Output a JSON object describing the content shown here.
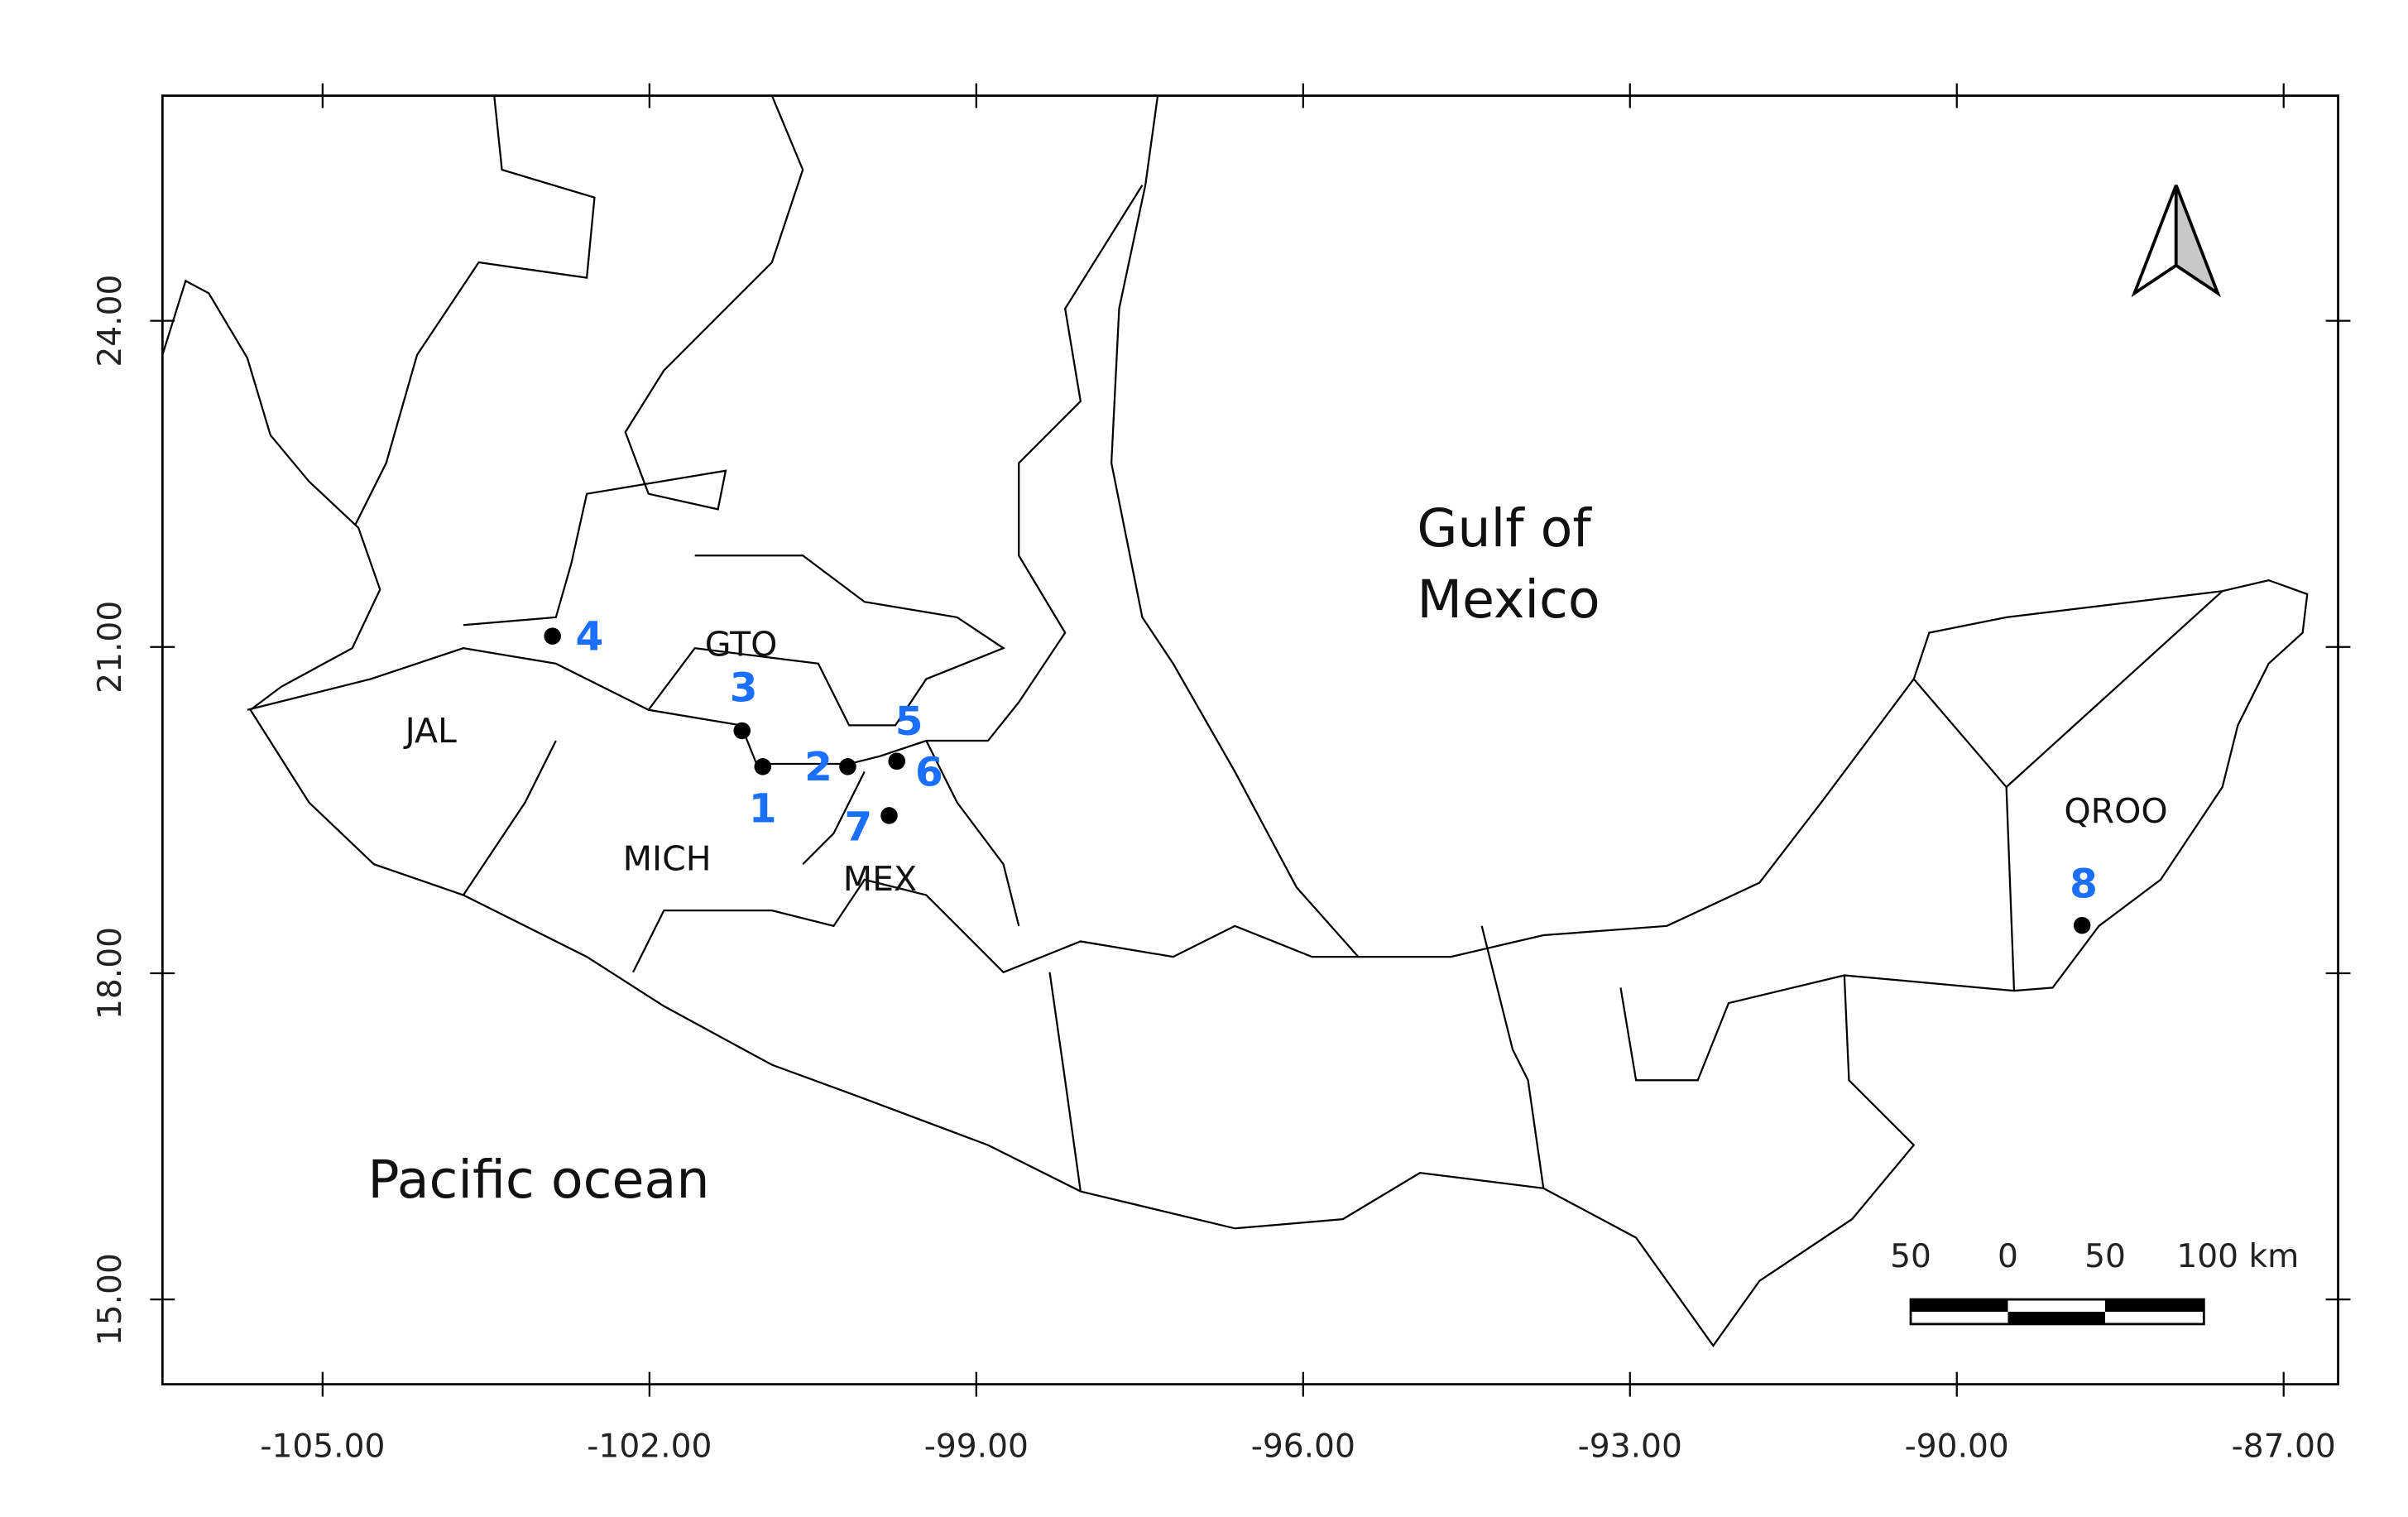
{
  "map": {
    "xlim": [
      -106.47,
      -86.5
    ],
    "ylim": [
      14.22,
      26.07
    ],
    "xticks": [
      {
        "value": -105,
        "label": "-105.00"
      },
      {
        "value": -102,
        "label": "-102.00"
      },
      {
        "value": -99,
        "label": "-99.00"
      },
      {
        "value": -96,
        "label": "-96.00"
      },
      {
        "value": -93,
        "label": "-93.00"
      },
      {
        "value": -90,
        "label": "-90.00"
      },
      {
        "value": -87,
        "label": "-87.00"
      }
    ],
    "yticks": [
      {
        "value": 15,
        "label": "15.00"
      },
      {
        "value": 18,
        "label": "18.00"
      },
      {
        "value": 21,
        "label": "21.00"
      },
      {
        "value": 24,
        "label": "24.00"
      }
    ],
    "sites": [
      {
        "label": "1",
        "lon": -100.96,
        "lat": 19.9
      },
      {
        "label": "2",
        "lon": -100.18,
        "lat": 19.9
      },
      {
        "label": "3",
        "lon": -101.15,
        "lat": 20.23
      },
      {
        "label": "4",
        "lon": -102.89,
        "lat": 21.1
      },
      {
        "label": "5",
        "lon": -99.73,
        "lat": 19.95
      },
      {
        "label": "6",
        "lon": -99.73,
        "lat": 19.95
      },
      {
        "label": "7",
        "lon": -99.8,
        "lat": 19.45
      },
      {
        "label": "8",
        "lon": -88.85,
        "lat": 18.44
      }
    ],
    "states": [
      "JAL",
      "GTO",
      "MICH",
      "MEX",
      "QROO"
    ],
    "gulf": [
      "Gulf of",
      "Mexico"
    ],
    "pacific": "Pacific ocean",
    "scale_bar": [
      "50",
      "0",
      "50",
      "100 km"
    ]
  }
}
